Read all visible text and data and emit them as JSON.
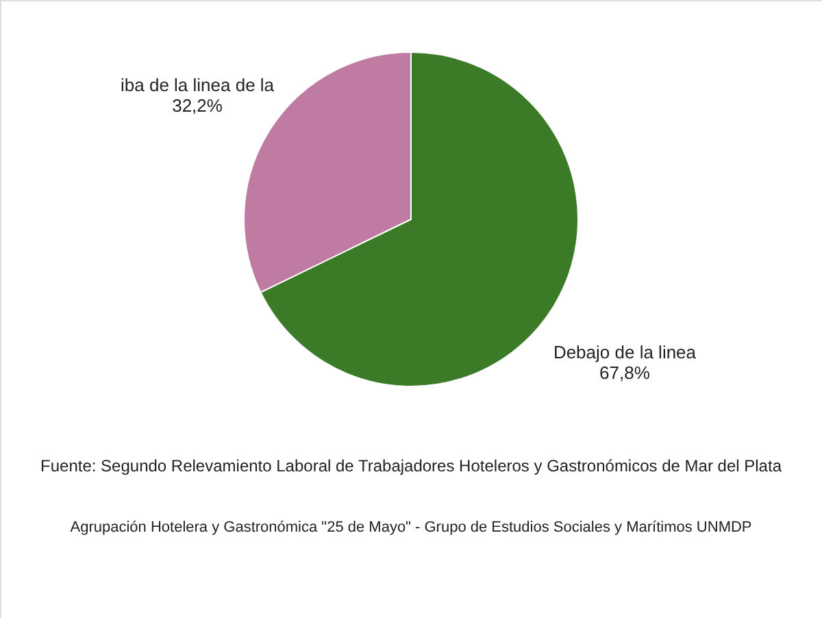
{
  "chart_data": {
    "type": "pie",
    "categories": [
      "Debajo de la linea",
      "iba de la linea de la"
    ],
    "values": [
      67.8,
      32.2
    ],
    "value_labels": [
      "67,8%",
      "32,2%"
    ],
    "colors": [
      "#3b7a26",
      "#c07ba2"
    ],
    "legend": false,
    "annotations": [
      "Fuente: Segundo Relevamiento Laboral de Trabajadores Hoteleros y Gastronómicos de Mar del Plata",
      "Agrupación Hotelera y Gastronómica \"25 de Mayo\" - Grupo de Estudios Sociales y Marítimos UNMDP"
    ]
  }
}
